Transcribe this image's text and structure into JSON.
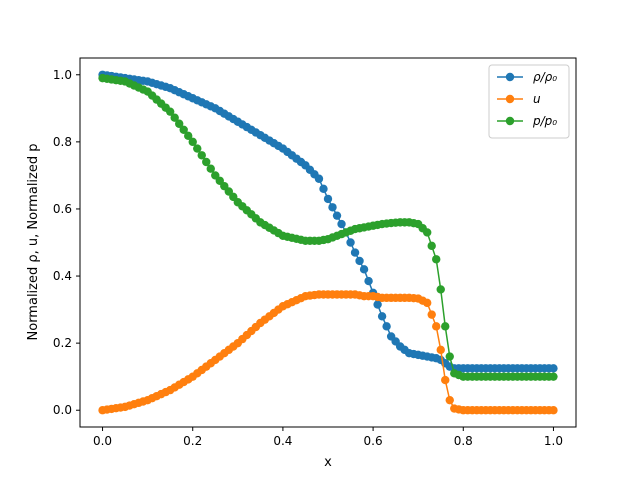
{
  "chart_data": {
    "type": "line",
    "xlabel": "x",
    "ylabel": "Normalized ρ, u, Normalized p",
    "xlim": [
      -0.05,
      1.05
    ],
    "ylim": [
      -0.05,
      1.05
    ],
    "xticks": [
      0.0,
      0.2,
      0.4,
      0.6,
      0.8,
      1.0
    ],
    "yticks": [
      0.0,
      0.2,
      0.4,
      0.6,
      0.8,
      1.0
    ],
    "x_tick_labels": [
      "0.0",
      "0.2",
      "0.4",
      "0.6",
      "0.8",
      "1.0"
    ],
    "y_tick_labels": [
      "0.0",
      "0.2",
      "0.4",
      "0.6",
      "0.8",
      "1.0"
    ],
    "grid": false,
    "legend_position": "top-right",
    "marker": "circle",
    "x": [
      0.0,
      0.05,
      0.1,
      0.15,
      0.2,
      0.25,
      0.3,
      0.35,
      0.4,
      0.45,
      0.48,
      0.5,
      0.52,
      0.54,
      0.56,
      0.58,
      0.6,
      0.62,
      0.64,
      0.66,
      0.68,
      0.7,
      0.72,
      0.74,
      0.75,
      0.76,
      0.77,
      0.78,
      0.8,
      0.85,
      0.9,
      0.95,
      1.0
    ],
    "series": [
      {
        "name": "ρ/ρ₀",
        "color": "#1f77b4",
        "values": [
          1.0,
          0.99,
          0.98,
          0.96,
          0.93,
          0.9,
          0.86,
          0.82,
          0.78,
          0.73,
          0.69,
          0.63,
          0.58,
          0.53,
          0.47,
          0.42,
          0.35,
          0.28,
          0.22,
          0.19,
          0.17,
          0.165,
          0.16,
          0.155,
          0.15,
          0.14,
          0.13,
          0.125,
          0.125,
          0.125,
          0.125,
          0.125,
          0.125
        ]
      },
      {
        "name": "u",
        "color": "#ff7f0e",
        "values": [
          0.0,
          0.01,
          0.03,
          0.06,
          0.1,
          0.15,
          0.2,
          0.26,
          0.31,
          0.34,
          0.345,
          0.345,
          0.345,
          0.345,
          0.345,
          0.34,
          0.34,
          0.335,
          0.335,
          0.335,
          0.335,
          0.333,
          0.32,
          0.25,
          0.18,
          0.09,
          0.03,
          0.005,
          0.0,
          0.0,
          0.0,
          0.0,
          0.0
        ]
      },
      {
        "name": "p/p₀",
        "color": "#2ca02c",
        "values": [
          0.99,
          0.98,
          0.95,
          0.89,
          0.8,
          0.7,
          0.62,
          0.56,
          0.52,
          0.505,
          0.505,
          0.51,
          0.52,
          0.53,
          0.54,
          0.545,
          0.55,
          0.555,
          0.558,
          0.56,
          0.56,
          0.555,
          0.53,
          0.45,
          0.36,
          0.25,
          0.16,
          0.11,
          0.1,
          0.1,
          0.1,
          0.1,
          0.1
        ]
      }
    ]
  }
}
